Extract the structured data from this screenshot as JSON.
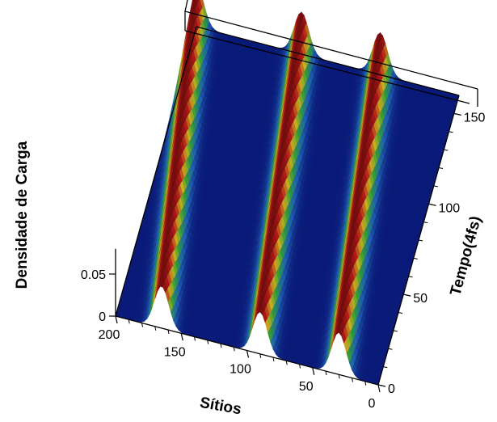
{
  "chart_data": {
    "type": "surface3d",
    "title": "",
    "xlabel": "Sítios",
    "ylabel": "Tempo(4fs)",
    "zlabel": "Densidade de Carga",
    "x_range": [
      0,
      200
    ],
    "y_range": [
      0,
      160
    ],
    "z_range": [
      0,
      0.05
    ],
    "x_ticks": [
      {
        "value": 200,
        "label": "200"
      },
      {
        "value": 150,
        "label": "150"
      },
      {
        "value": 100,
        "label": "100"
      },
      {
        "value": 50,
        "label": "50"
      },
      {
        "value": 0,
        "label": "0"
      }
    ],
    "y_ticks": [
      {
        "value": 0,
        "label": "0"
      },
      {
        "value": 50,
        "label": "50"
      },
      {
        "value": 100,
        "label": "100"
      },
      {
        "value": 150,
        "label": "150"
      }
    ],
    "z_ticks": [
      {
        "value": 0,
        "label": "0"
      },
      {
        "value": 0.05,
        "label": "0.05"
      }
    ],
    "peaks": [
      {
        "site_at_t0": 30,
        "site_at_tmax": 60
      },
      {
        "site_at_t0": 90,
        "site_at_tmax": 120
      },
      {
        "site_at_t0": 165,
        "site_at_tmax": 200
      }
    ],
    "peak_height": 0.05,
    "colormap": [
      "#0a1a78",
      "#1f5fb0",
      "#2e9a3a",
      "#c8b020",
      "#b01818",
      "#6a0c0c"
    ],
    "grid": false,
    "legend": "none"
  }
}
